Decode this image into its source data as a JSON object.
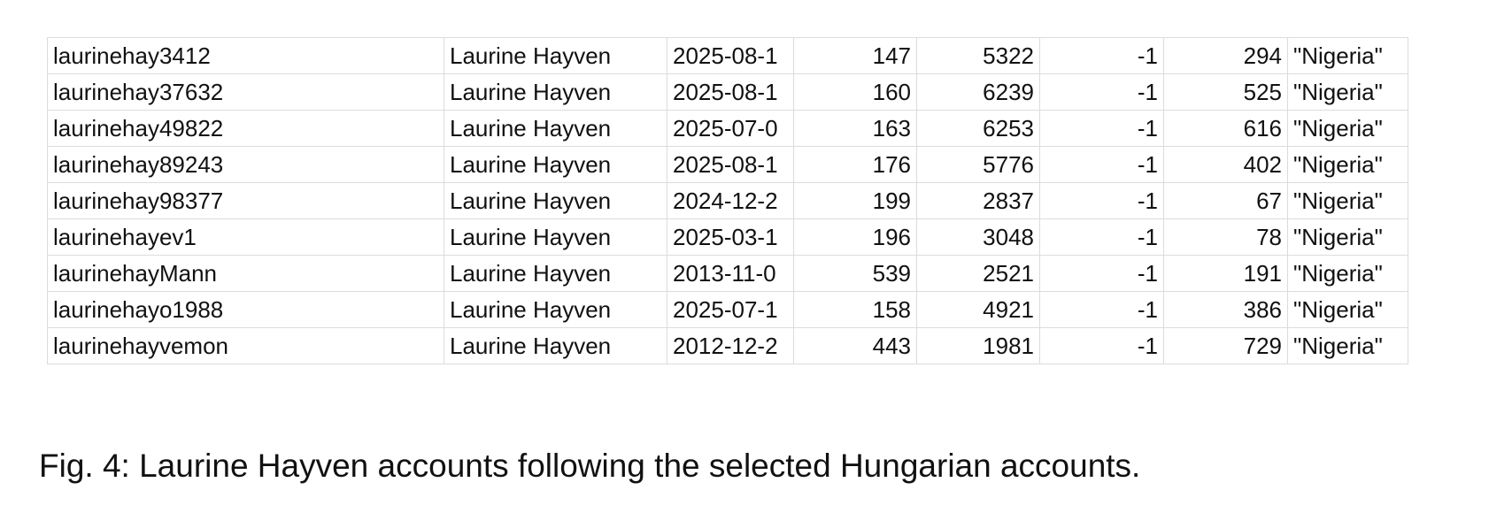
{
  "table": {
    "rows": [
      [
        "laurinehay3412",
        "Laurine Hayven",
        "2025-08-1",
        147,
        5322,
        -1,
        294,
        "\"Nigeria\""
      ],
      [
        "laurinehay37632",
        "Laurine Hayven",
        "2025-08-1",
        160,
        6239,
        -1,
        525,
        "\"Nigeria\""
      ],
      [
        "laurinehay49822",
        "Laurine Hayven",
        "2025-07-0",
        163,
        6253,
        -1,
        616,
        "\"Nigeria\""
      ],
      [
        "laurinehay89243",
        "Laurine Hayven",
        "2025-08-1",
        176,
        5776,
        -1,
        402,
        "\"Nigeria\""
      ],
      [
        "laurinehay98377",
        "Laurine Hayven",
        "2024-12-2",
        199,
        2837,
        -1,
        67,
        "\"Nigeria\""
      ],
      [
        "laurinehayev1",
        "Laurine Hayven",
        "2025-03-1",
        196,
        3048,
        -1,
        78,
        "\"Nigeria\""
      ],
      [
        "laurinehayMann",
        "Laurine Hayven",
        "2013-11-0",
        539,
        2521,
        -1,
        191,
        "\"Nigeria\""
      ],
      [
        "laurinehayo1988",
        "Laurine Hayven",
        "2025-07-1",
        158,
        4921,
        -1,
        386,
        "\"Nigeria\""
      ],
      [
        "laurinehayvemon",
        "Laurine Hayven",
        "2012-12-2",
        443,
        1981,
        -1,
        729,
        "\"Nigeria\""
      ]
    ]
  },
  "caption": "Fig. 4: Laurine Hayven accounts following the selected Hungarian accounts."
}
